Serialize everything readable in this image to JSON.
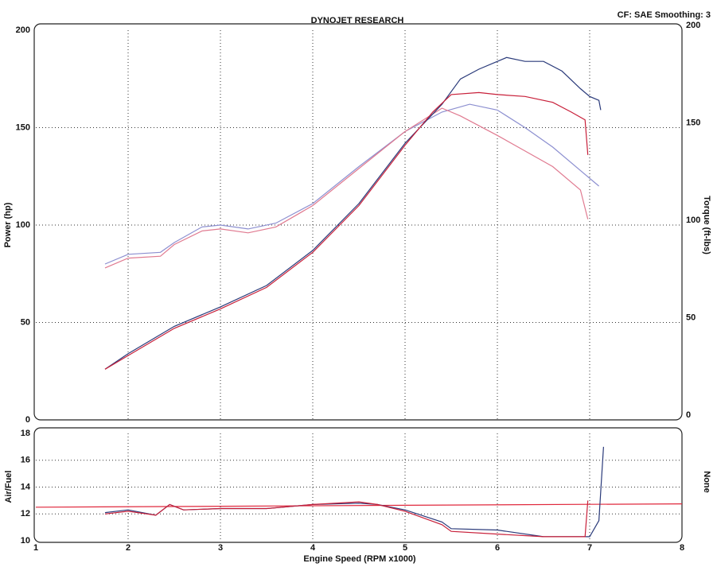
{
  "chart_data": [
    {
      "type": "line",
      "title": "DYNOJET RESEARCH",
      "annotation": "CF: SAE  Smoothing: 3",
      "y_label": "Power (hp)",
      "y2_label": "Torque (ft-lbs)",
      "xlim": [
        1,
        8
      ],
      "xticks": [
        2,
        3,
        4,
        5,
        6,
        7
      ],
      "ylim": [
        0,
        200
      ],
      "yticks": [
        0,
        50,
        100,
        150,
        200
      ],
      "y2lim": [
        0,
        200
      ],
      "y2ticks": [
        0,
        50,
        100,
        150,
        200
      ],
      "grid": true,
      "series": [
        {
          "color": "#8c8fd0",
          "axis": "y2",
          "x": [
            1.75,
            2,
            2.35,
            2.5,
            2.8,
            3,
            3.3,
            3.6,
            4,
            4.5,
            5,
            5.4,
            5.7,
            6,
            6.3,
            6.6,
            6.9,
            7.1
          ],
          "values": [
            80,
            85,
            86,
            91,
            99,
            100,
            98,
            101,
            111,
            130,
            148,
            158,
            162,
            159,
            150,
            140,
            128,
            120
          ]
        },
        {
          "color": "#e07a90",
          "axis": "y2",
          "x": [
            1.75,
            2,
            2.35,
            2.5,
            2.8,
            3,
            3.3,
            3.6,
            4,
            4.5,
            5,
            5.4,
            5.6,
            6,
            6.3,
            6.6,
            6.9,
            6.98
          ],
          "values": [
            78,
            83,
            84,
            90,
            97,
            98,
            96,
            99,
            110,
            129,
            148,
            160,
            156,
            146,
            138,
            130,
            118,
            103
          ]
        },
        {
          "color": "#2a3a7a",
          "x": [
            1.75,
            2,
            2.5,
            3,
            3.5,
            4,
            4.5,
            5,
            5.4,
            5.6,
            5.8,
            6.1,
            6.3,
            6.5,
            6.7,
            6.9,
            7,
            7.1,
            7.12
          ],
          "values": [
            26,
            34,
            48,
            58,
            69,
            87,
            111,
            142,
            162,
            175,
            180,
            186,
            184,
            184,
            179,
            170,
            166,
            164,
            159
          ]
        },
        {
          "color": "#c8203a",
          "x": [
            1.75,
            2,
            2.5,
            3,
            3.5,
            4,
            4.5,
            5,
            5.3,
            5.5,
            5.8,
            6,
            6.3,
            6.6,
            6.8,
            6.95,
            6.98
          ],
          "values": [
            26,
            33,
            47,
            57,
            68,
            86,
            110,
            141,
            158,
            167,
            168,
            167,
            166,
            163,
            158,
            154,
            136
          ]
        }
      ]
    },
    {
      "type": "line",
      "y_label": "Air/Fuel",
      "y2_label": "None",
      "x_label": "Engine Speed (RPM x1000)",
      "xlim": [
        1,
        8
      ],
      "xticks": [
        1,
        2,
        3,
        4,
        5,
        6,
        7,
        8
      ],
      "ylim": [
        10,
        18
      ],
      "yticks": [
        10,
        12,
        14,
        16,
        18
      ],
      "grid": true,
      "series": [
        {
          "color": "#e0283c",
          "x": [
            1,
            8
          ],
          "values": [
            12.5,
            12.75
          ]
        },
        {
          "color": "#2a3a7a",
          "x": [
            1.75,
            2,
            2.3,
            2.45,
            2.6,
            3,
            3.5,
            4,
            4.5,
            4.7,
            5,
            5.4,
            5.5,
            6,
            6.5,
            7,
            7.1,
            7.15
          ],
          "values": [
            12.1,
            12.3,
            11.9,
            12.7,
            12.3,
            12.4,
            12.4,
            12.7,
            12.8,
            12.7,
            12.3,
            11.4,
            10.9,
            10.8,
            10.3,
            10.3,
            11.5,
            17
          ]
        },
        {
          "color": "#c8203a",
          "x": [
            1.75,
            2,
            2.3,
            2.45,
            2.6,
            3,
            3.5,
            4,
            4.5,
            4.7,
            5,
            5.4,
            5.5,
            6,
            6.5,
            6.95,
            6.98
          ],
          "values": [
            12,
            12.2,
            11.9,
            12.7,
            12.3,
            12.4,
            12.4,
            12.7,
            12.9,
            12.7,
            12.2,
            11.2,
            10.7,
            10.5,
            10.3,
            10.3,
            13
          ]
        }
      ]
    }
  ]
}
